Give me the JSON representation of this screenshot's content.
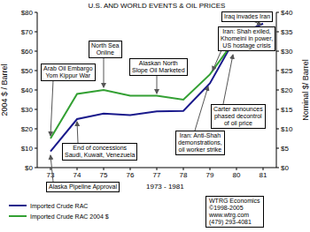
{
  "chart_data": {
    "type": "line",
    "title": "U.S. AND WORLD EVENTS & OIL PRICES",
    "x_label": "1973 - 1981",
    "y_label": "2004 $ / Barrel",
    "y2_label": "Nominal $/ Barrel",
    "x": [
      73,
      74,
      75,
      76,
      77,
      78,
      79,
      80,
      81
    ],
    "xlim": [
      72.5,
      81.5
    ],
    "xticks": [
      73,
      74,
      75,
      76,
      77,
      78,
      79,
      80,
      81
    ],
    "ylim": [
      0,
      80
    ],
    "yticks": [
      {
        "value": 0,
        "label": "$0"
      },
      {
        "value": 10,
        "label": "$10"
      },
      {
        "value": 20,
        "label": "$20"
      },
      {
        "value": 30,
        "label": "$30"
      },
      {
        "value": 40,
        "label": "$40"
      },
      {
        "value": 50,
        "label": "$50"
      },
      {
        "value": 60,
        "label": "$60"
      },
      {
        "value": 70,
        "label": "$70"
      },
      {
        "value": 80,
        "label": "$80"
      }
    ],
    "y2lim": [
      0,
      40
    ],
    "y2ticks": [
      {
        "value": 0,
        "label": "$0"
      },
      {
        "value": 5,
        "label": "$5"
      },
      {
        "value": 10,
        "label": "$10"
      },
      {
        "value": 15,
        "label": "$15"
      },
      {
        "value": 20,
        "label": "$20"
      },
      {
        "value": 25,
        "label": "$25"
      },
      {
        "value": 30,
        "label": "$30"
      },
      {
        "value": 35,
        "label": "$35"
      },
      {
        "value": 40,
        "label": "$40"
      }
    ],
    "series": [
      {
        "name": "Imported Crude RAC",
        "color": "#1a1a8c",
        "axis": "y2",
        "values": [
          4.2,
          12.5,
          13.9,
          13.5,
          14.5,
          14.6,
          21.7,
          33.9,
          37.1
        ]
      },
      {
        "name": "Imported Crude RAC 2004 $",
        "color": "#33a033",
        "values": [
          15,
          38,
          40,
          37,
          37,
          35,
          48,
          67,
          68
        ]
      }
    ],
    "grid": false,
    "legend": "bottom",
    "annotations": [
      [
        "Arab Oil Embargo",
        "Yom Kippur War"
      ],
      [
        "North Sea",
        "Online"
      ],
      [
        "Alaskan North",
        "Slope Oil Marketed"
      ],
      [
        "Iraq invades Iran"
      ],
      [
        "Iran: Shah exiled,",
        "Khomeini in power,",
        "US hostage crisis"
      ],
      [
        "Carter announces",
        "phased decontrol",
        "of oil price"
      ],
      [
        "End of concessions",
        "Saudi, Kuwait, Venezuela"
      ],
      [
        "Iran: Anti-Shah",
        "demonstrations,",
        "oil worker strike"
      ],
      [
        "Alaska Pipeline Approval"
      ]
    ],
    "source": [
      "WTRG Economics",
      "©1998-2005",
      "www.wtrg.com",
      "(479) 293-4081"
    ]
  }
}
